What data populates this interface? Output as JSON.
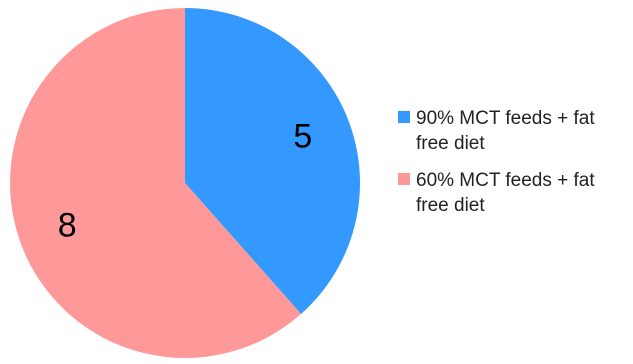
{
  "chart_data": {
    "type": "pie",
    "title": "",
    "slices": [
      {
        "label": "90% MCT feeds + fat free diet",
        "value": 5,
        "color": "#3399FF"
      },
      {
        "label": "60% MCT feeds + fat free diet",
        "value": 8,
        "color": "#FF9999"
      }
    ],
    "data_labels": [
      "5",
      "8"
    ],
    "start_angle_deg": 0,
    "direction": "clockwise",
    "legend_position": "right"
  }
}
